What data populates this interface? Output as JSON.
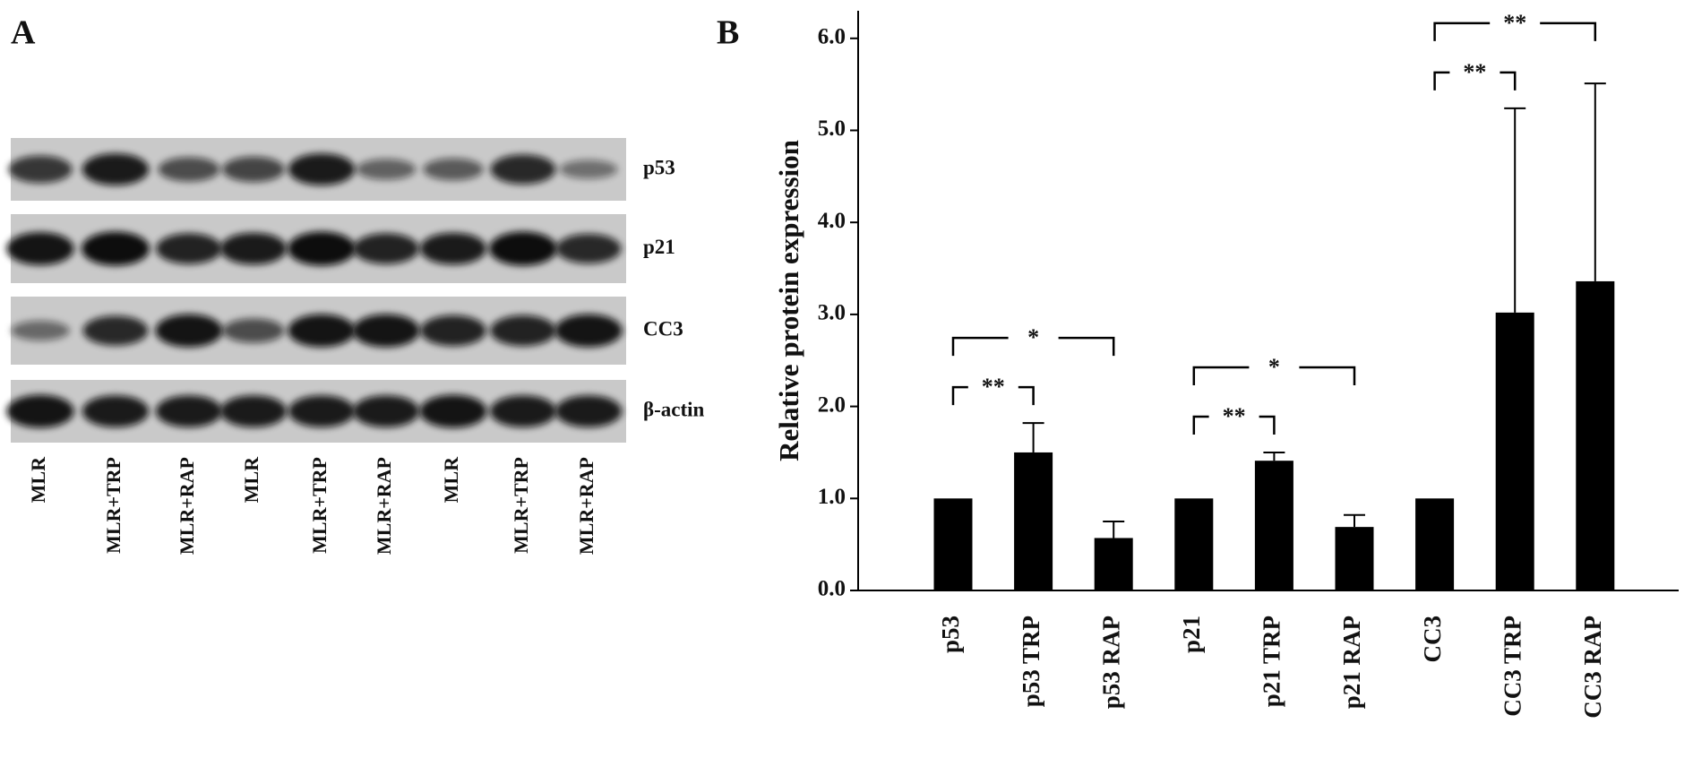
{
  "panel_a": {
    "label": "A",
    "rows": [
      "p53",
      "p21",
      "CC3",
      "β-actin"
    ],
    "lanes": [
      "MLR",
      "MLR+TRP",
      "MLR+RAP",
      "MLR",
      "MLR+TRP",
      "MLR+RAP",
      "MLR",
      "MLR+TRP",
      "MLR+RAP"
    ]
  },
  "chart_data": {
    "type": "bar",
    "panel_label": "B",
    "y_label": "Relative protein expression",
    "categories": [
      "p53",
      "p53 TRP",
      "p53 RAP",
      "p21",
      "p21 TRP",
      "p21 RAP",
      "CC3",
      "CC3 TRP",
      "CC3 RAP"
    ],
    "values": [
      1.0,
      1.5,
      0.57,
      1.0,
      1.41,
      0.69,
      1.0,
      3.02,
      3.36
    ],
    "errors": [
      0,
      0.32,
      0.18,
      0,
      0.09,
      0.13,
      0,
      2.22,
      2.15
    ],
    "color": "#000000",
    "ylim": [
      0,
      6.3
    ],
    "yticks": [
      {
        "value": 0,
        "label": "0.0"
      },
      {
        "value": 1,
        "label": "1.0"
      },
      {
        "value": 2,
        "label": "2.0"
      },
      {
        "value": 3,
        "label": "3.0"
      },
      {
        "value": 4,
        "label": "4.0"
      },
      {
        "value": 5,
        "label": "5.0"
      },
      {
        "value": 6,
        "label": "6.0"
      }
    ],
    "annotations": [
      {
        "from": 0,
        "to": 1,
        "label": "**"
      },
      {
        "from": 0,
        "to": 2,
        "label": "*"
      },
      {
        "from": 3,
        "to": 4,
        "label": "**"
      },
      {
        "from": 3,
        "to": 5,
        "label": "*"
      },
      {
        "from": 6,
        "to": 7,
        "label": "**"
      },
      {
        "from": 6,
        "to": 8,
        "label": "**"
      }
    ]
  }
}
